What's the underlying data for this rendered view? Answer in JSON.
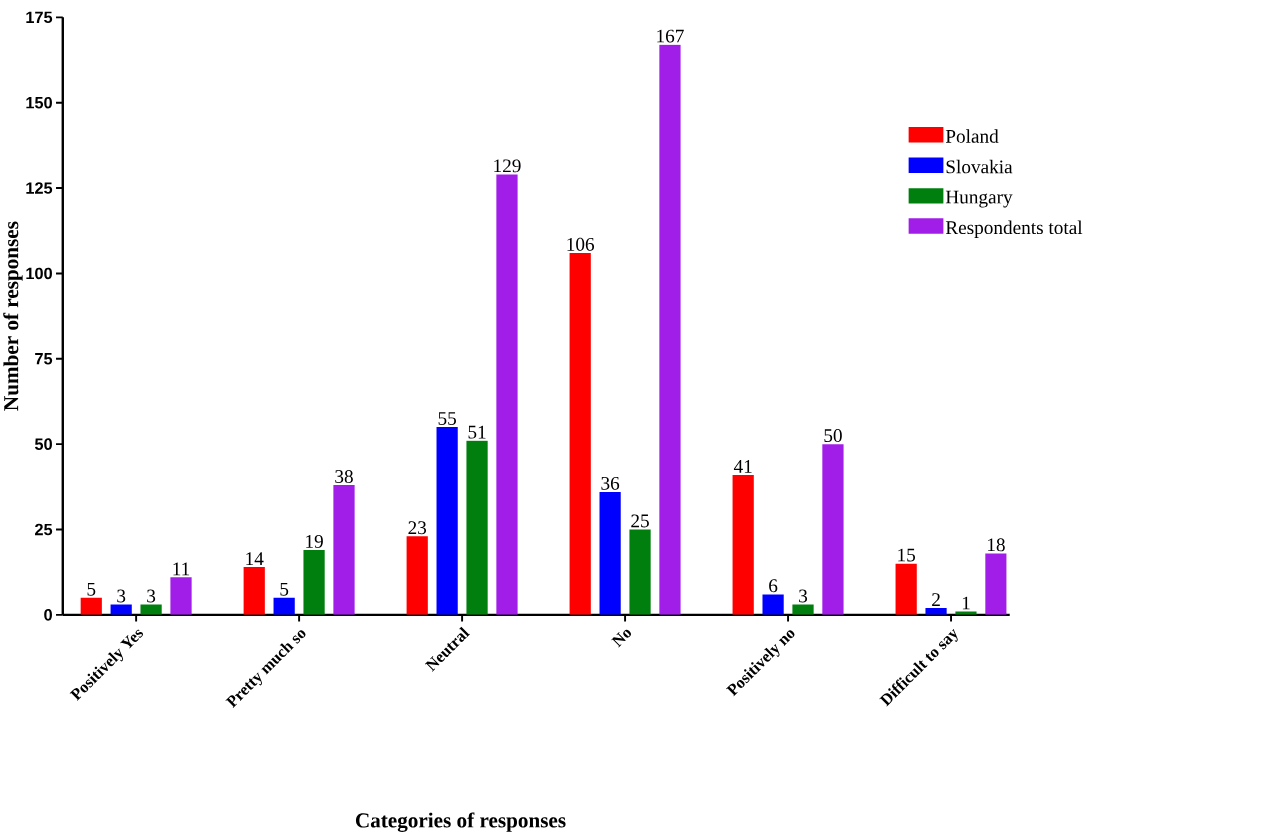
{
  "chart_data": {
    "type": "bar",
    "xlabel": "Categories of responses",
    "ylabel": "Number of responses",
    "categories": [
      "Positively Yes",
      "Pretty much so",
      "Neutral",
      "No",
      "Positively no",
      "Difficult to say"
    ],
    "series": [
      {
        "name": "Poland",
        "color": "#ff0000",
        "values": [
          5,
          14,
          23,
          106,
          41,
          15
        ]
      },
      {
        "name": "Slovakia",
        "color": "#0000ff",
        "values": [
          3,
          5,
          55,
          36,
          6,
          2
        ]
      },
      {
        "name": "Hungary",
        "color": "#007f0e",
        "values": [
          3,
          19,
          51,
          25,
          3,
          1
        ]
      },
      {
        "name": "Respondents total",
        "color": "#a11ee8",
        "values": [
          11,
          38,
          129,
          167,
          50,
          18
        ]
      }
    ],
    "ylim": [
      0,
      175
    ],
    "yticks": [
      0,
      25,
      50,
      75,
      100,
      125,
      150,
      175
    ],
    "data_labels": true,
    "legend": "right",
    "grid": false
  }
}
